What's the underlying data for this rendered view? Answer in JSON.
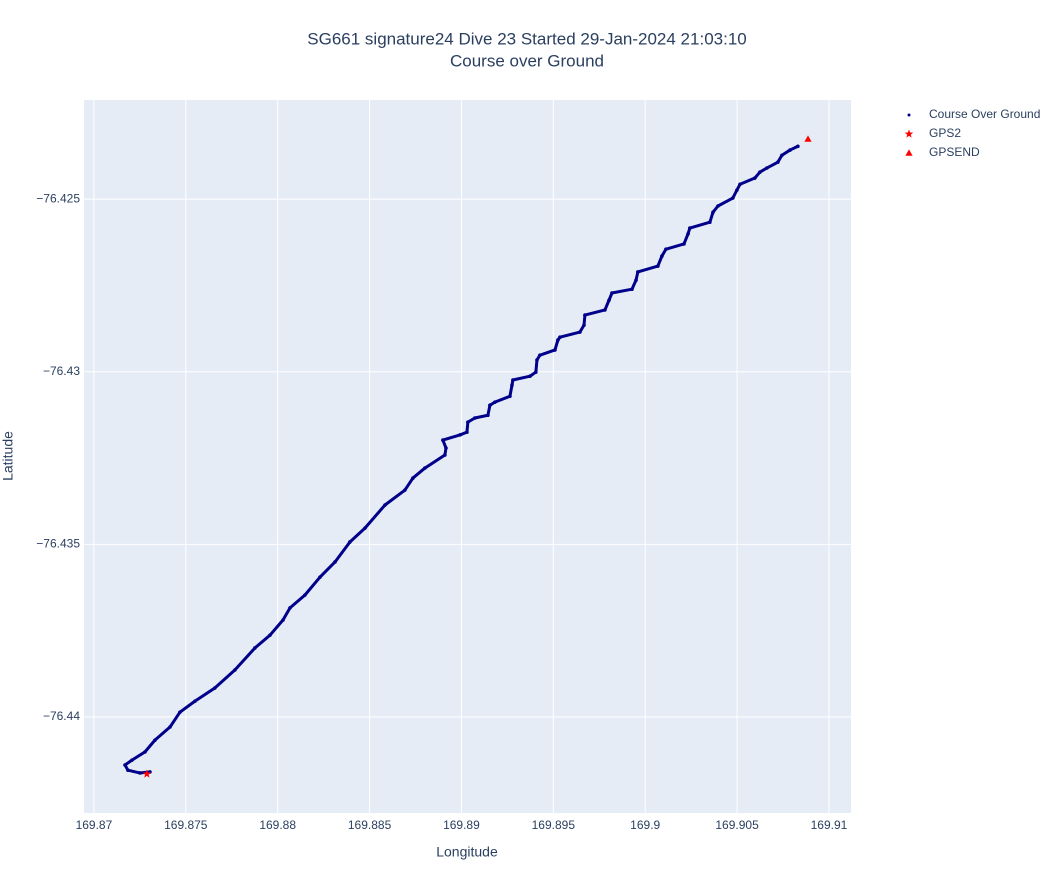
{
  "chart_data": {
    "type": "scatter",
    "title": "SG661 signature24 Dive 23 Started 29-Jan-2024 21:03:10",
    "subtitle": "Course over Ground",
    "x_label": "Longitude",
    "y_label": "Latitude",
    "xlim": [
      169.86946,
      169.9112
    ],
    "ylim": [
      -76.44278,
      -76.42213
    ],
    "xticks": [
      169.87,
      169.875,
      169.88,
      169.885,
      169.89,
      169.895,
      169.9,
      169.905,
      169.91
    ],
    "yticks": [
      {
        "value": -76.425,
        "label": "−76.425"
      },
      {
        "value": -76.43,
        "label": "−76.43"
      },
      {
        "value": -76.435,
        "label": "−76.435"
      },
      {
        "value": -76.44,
        "label": "−76.44"
      }
    ],
    "grid": true,
    "legend": "outside-right",
    "series": [
      {
        "name": "Course Over Ground",
        "color": "#00008b",
        "marker": "circle",
        "x": [
          169.87305,
          169.8725,
          169.87185,
          169.87169,
          169.87207,
          169.87278,
          169.87332,
          169.87414,
          169.87468,
          169.8755,
          169.87658,
          169.87767,
          169.87876,
          169.87958,
          169.88029,
          169.88067,
          169.88148,
          169.8823,
          169.88312,
          169.88393,
          169.88475,
          169.88584,
          169.88692,
          169.88736,
          169.88801,
          169.8891,
          169.88916,
          169.88899,
          169.88992,
          169.8903,
          169.89035,
          169.89073,
          169.89144,
          169.89155,
          169.89182,
          169.89264,
          169.89275,
          169.8928,
          169.89373,
          169.89405,
          169.89411,
          169.89427,
          169.89509,
          169.89525,
          169.89536,
          169.89645,
          169.89667,
          169.89672,
          169.89781,
          169.89803,
          169.89819,
          169.89928,
          169.8995,
          169.8996,
          169.90069,
          169.90091,
          169.90113,
          169.90211,
          169.90233,
          169.90243,
          169.90352,
          169.90369,
          169.90396,
          169.90477,
          169.90499,
          169.90516,
          169.90597,
          169.90624,
          169.90662,
          169.90722,
          169.90744,
          169.90788,
          169.90831
        ],
        "y": [
          -76.44159,
          -76.44162,
          -76.44154,
          -76.44139,
          -76.44125,
          -76.44101,
          -76.44067,
          -76.44029,
          -76.43986,
          -76.43954,
          -76.43916,
          -76.43864,
          -76.438,
          -76.43763,
          -76.43719,
          -76.43684,
          -76.43647,
          -76.43595,
          -76.43551,
          -76.43493,
          -76.43453,
          -76.43386,
          -76.43343,
          -76.43308,
          -76.43279,
          -76.43241,
          -76.43221,
          -76.43198,
          -76.43183,
          -76.43175,
          -76.43146,
          -76.43134,
          -76.43126,
          -76.43097,
          -76.43088,
          -76.43071,
          -76.43039,
          -76.43024,
          -76.43013,
          -76.43001,
          -76.42966,
          -76.42952,
          -76.42937,
          -76.42908,
          -76.429,
          -76.42885,
          -76.42865,
          -76.42836,
          -76.42821,
          -76.42793,
          -76.42772,
          -76.42761,
          -76.42735,
          -76.42711,
          -76.42694,
          -76.42665,
          -76.42645,
          -76.4263,
          -76.42601,
          -76.42584,
          -76.42567,
          -76.42538,
          -76.4252,
          -76.42497,
          -76.42474,
          -76.42457,
          -76.42439,
          -76.42422,
          -76.4241,
          -76.42393,
          -76.42373,
          -76.42358,
          -76.42347
        ]
      },
      {
        "name": "GPS2",
        "color": "#ff0000",
        "marker": "star",
        "x": [
          169.87288
        ],
        "y": [
          -76.44165
        ]
      },
      {
        "name": "GPSEND",
        "color": "#ff0000",
        "marker": "triangle-up",
        "x": [
          169.90886
        ],
        "y": [
          -76.42326
        ]
      }
    ]
  }
}
